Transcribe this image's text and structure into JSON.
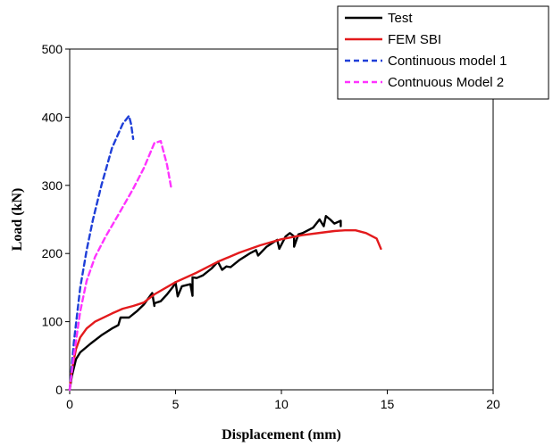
{
  "chart_data": {
    "type": "line",
    "title": "",
    "xlabel": "Displacement (mm)",
    "ylabel": "Load (kN)",
    "xlim": [
      0,
      20
    ],
    "ylim": [
      0,
      500
    ],
    "xticks": [
      0,
      5,
      10,
      15,
      20
    ],
    "yticks": [
      0,
      100,
      200,
      300,
      400,
      500
    ],
    "grid": false,
    "legend_position": "top-right",
    "series": [
      {
        "name": "Test",
        "color": "#000000",
        "dash": "solid",
        "x": [
          0,
          0.1,
          0.3,
          0.5,
          1.0,
          1.5,
          2.0,
          2.3,
          2.4,
          2.8,
          3.2,
          3.5,
          3.9,
          4.0,
          4.0,
          4.3,
          4.6,
          4.9,
          5.0,
          5.1,
          5.3,
          5.7,
          5.8,
          5.8,
          6.0,
          6.3,
          6.7,
          7.0,
          7.2,
          7.4,
          7.6,
          8.0,
          8.5,
          8.8,
          8.9,
          9.3,
          9.8,
          9.9,
          10.2,
          10.4,
          10.6,
          10.6,
          10.8,
          11.0,
          11.5,
          11.8,
          12.0,
          12.1,
          12.3,
          12.5,
          12.8,
          12.8
        ],
        "y": [
          0,
          20,
          45,
          55,
          68,
          80,
          90,
          95,
          106,
          106,
          116,
          125,
          142,
          123,
          127,
          130,
          140,
          152,
          158,
          137,
          152,
          155,
          138,
          165,
          164,
          168,
          178,
          188,
          176,
          181,
          180,
          190,
          200,
          205,
          197,
          210,
          220,
          207,
          225,
          230,
          225,
          210,
          228,
          230,
          238,
          250,
          240,
          255,
          250,
          244,
          248,
          240
        ]
      },
      {
        "name": "FEM SBI",
        "color": "#e31a1c",
        "dash": "solid",
        "x": [
          0,
          0.1,
          0.3,
          0.5,
          0.8,
          1.2,
          2.0,
          2.5,
          3.0,
          3.5,
          4.0,
          5.0,
          6.0,
          7.0,
          8.0,
          9.0,
          10.0,
          11.0,
          12.0,
          12.5,
          13.0,
          13.5,
          14.0,
          14.5,
          14.7
        ],
        "y": [
          0,
          30,
          60,
          77,
          90,
          100,
          112,
          119,
          123,
          128,
          140,
          158,
          172,
          188,
          201,
          212,
          221,
          227,
          231,
          233,
          234,
          234,
          230,
          222,
          207
        ]
      },
      {
        "name": "Continuous model 1",
        "color": "#1f3fd8",
        "dash": "dashed",
        "x": [
          0,
          0.2,
          0.5,
          0.8,
          1.1,
          1.5,
          2.0,
          2.5,
          2.8,
          2.9,
          3.0
        ],
        "y": [
          0,
          70,
          150,
          205,
          250,
          300,
          355,
          390,
          402,
          390,
          368
        ]
      },
      {
        "name": "Contnuous Model 2",
        "color": "#ff33ff",
        "dash": "dashed",
        "x": [
          0,
          0.2,
          0.5,
          0.8,
          1.2,
          1.7,
          2.3,
          3.0,
          3.5,
          4.0,
          4.3,
          4.6,
          4.8
        ],
        "y": [
          0,
          50,
          115,
          160,
          195,
          225,
          257,
          295,
          325,
          362,
          365,
          330,
          295
        ]
      }
    ]
  }
}
